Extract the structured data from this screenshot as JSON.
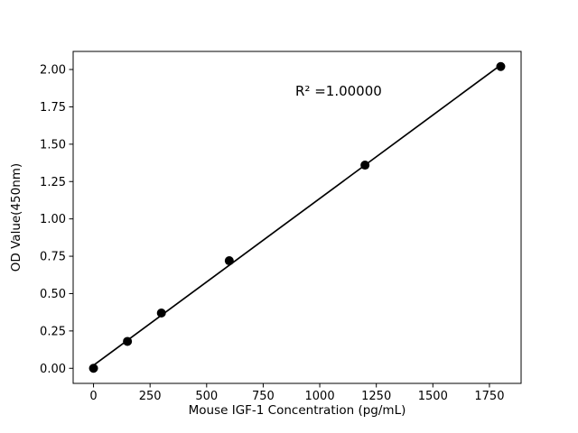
{
  "figure": {
    "background": "#ffffff"
  },
  "chart_data": {
    "type": "scatter",
    "title": "",
    "xlabel": "Mouse IGF-1 Concentration (pg/mL)",
    "ylabel": "OD Value(450nm)",
    "annotation": "R² =1.00000",
    "xlim": [
      -90,
      1890
    ],
    "ylim": [
      -0.101,
      2.121
    ],
    "xticks": [
      "0",
      "250",
      "500",
      "750",
      "1000",
      "1250",
      "1500",
      "1750"
    ],
    "yticks": [
      "0.00",
      "0.25",
      "0.50",
      "0.75",
      "1.00",
      "1.25",
      "1.50",
      "1.75",
      "2.00"
    ],
    "grid": false,
    "legend": "none",
    "series": [
      {
        "name": "standard-points",
        "x": [
          0,
          150,
          300,
          600,
          1200,
          1800
        ],
        "y": [
          0.0,
          0.18,
          0.37,
          0.72,
          1.36,
          2.02
        ]
      }
    ],
    "fit_line": {
      "name": "linear-fit",
      "x": [
        0,
        1800
      ],
      "y": [
        0.02,
        2.03
      ]
    },
    "marker_color": "#000000",
    "line_color": "#000000",
    "axis_color": "#000000",
    "background": "#ffffff"
  }
}
